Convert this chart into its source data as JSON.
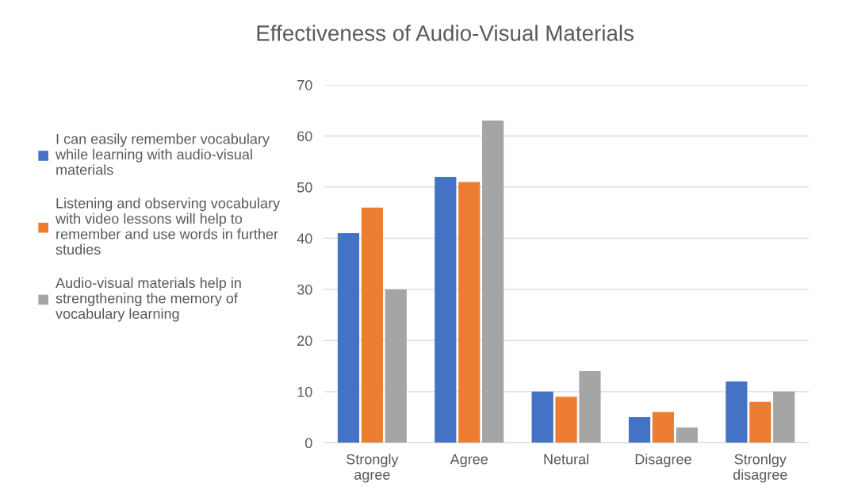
{
  "chart_data": {
    "type": "bar",
    "title": "Effectiveness of Audio-Visual Materials",
    "categories": [
      "Strongly agree",
      "Agree",
      "Netural",
      "Disagree",
      "Stronlgy disagree"
    ],
    "series": [
      {
        "name": "I can easily remember vocabulary while learning with audio-visual materials",
        "color": "#4472c4",
        "values": [
          41,
          52,
          10,
          5,
          12
        ]
      },
      {
        "name": "Listening and observing vocabulary with video lessons will help to remember and use words in further studies",
        "color": "#ed7d31",
        "values": [
          46,
          51,
          9,
          6,
          8
        ]
      },
      {
        "name": "Audio-visual materials help in strengthening the memory of vocabulary learning",
        "color": "#a5a5a5",
        "values": [
          30,
          63,
          14,
          3,
          10
        ]
      }
    ],
    "ylim": [
      0,
      70
    ],
    "yticks": [
      0,
      10,
      20,
      30,
      40,
      50,
      60,
      70
    ],
    "grid": "y",
    "legend": "left"
  }
}
